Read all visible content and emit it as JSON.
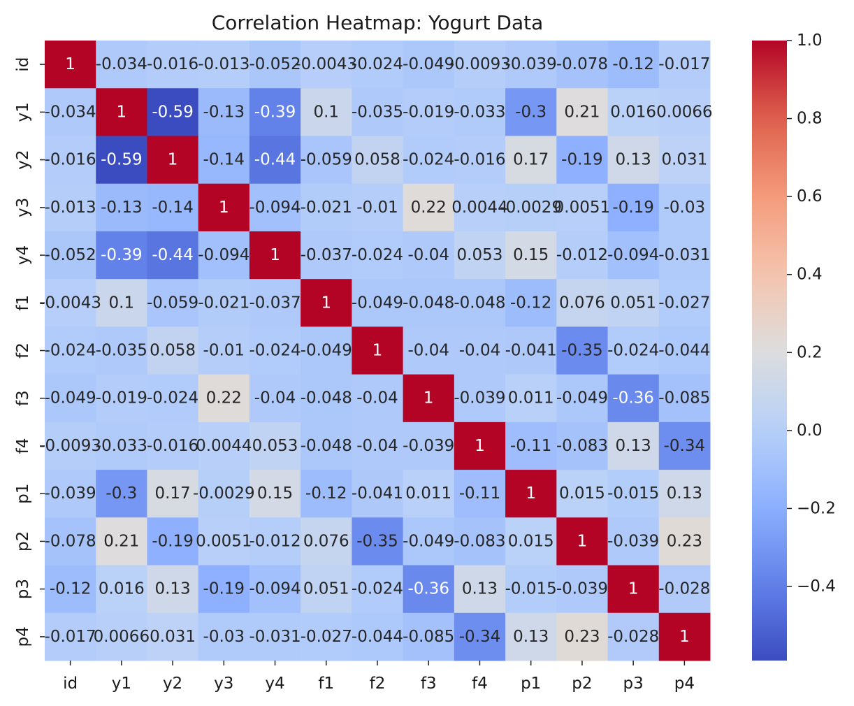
{
  "chart_data": {
    "type": "heatmap",
    "title": "Correlation Heatmap: Yogurt Data",
    "xlabel": "",
    "ylabel": "",
    "labels": [
      "id",
      "y1",
      "y2",
      "y3",
      "y4",
      "f1",
      "f2",
      "f3",
      "f4",
      "p1",
      "p2",
      "p3",
      "p4"
    ],
    "matrix": [
      [
        1,
        -0.034,
        -0.016,
        -0.013,
        -0.052,
        -0.0043,
        -0.024,
        -0.049,
        -0.0093,
        -0.039,
        -0.078,
        -0.12,
        -0.017
      ],
      [
        -0.034,
        1,
        -0.59,
        -0.13,
        -0.39,
        0.1,
        -0.035,
        -0.019,
        -0.033,
        -0.3,
        0.21,
        0.016,
        0.0066
      ],
      [
        -0.016,
        -0.59,
        1,
        -0.14,
        -0.44,
        -0.059,
        0.058,
        -0.024,
        -0.016,
        0.17,
        -0.19,
        0.13,
        0.031
      ],
      [
        -0.013,
        -0.13,
        -0.14,
        1,
        -0.094,
        -0.021,
        -0.01,
        0.22,
        0.0044,
        -0.0029,
        0.0051,
        -0.19,
        -0.03
      ],
      [
        -0.052,
        -0.39,
        -0.44,
        -0.094,
        1,
        -0.037,
        -0.024,
        -0.04,
        0.053,
        0.15,
        -0.012,
        -0.094,
        -0.031
      ],
      [
        -0.0043,
        0.1,
        -0.059,
        -0.021,
        -0.037,
        1,
        -0.049,
        -0.048,
        -0.048,
        -0.12,
        0.076,
        0.051,
        -0.027
      ],
      [
        -0.024,
        -0.035,
        0.058,
        -0.01,
        -0.024,
        -0.049,
        1,
        -0.04,
        -0.04,
        -0.041,
        -0.35,
        -0.024,
        -0.044
      ],
      [
        -0.049,
        -0.019,
        -0.024,
        0.22,
        -0.04,
        -0.048,
        -0.04,
        1,
        -0.039,
        0.011,
        -0.049,
        -0.36,
        -0.085
      ],
      [
        -0.0093,
        -0.033,
        -0.016,
        0.0044,
        0.053,
        -0.048,
        -0.04,
        -0.039,
        1,
        -0.11,
        -0.083,
        0.13,
        -0.34
      ],
      [
        -0.039,
        -0.3,
        0.17,
        -0.0029,
        0.15,
        -0.12,
        -0.041,
        0.011,
        -0.11,
        1,
        0.015,
        -0.015,
        0.13
      ],
      [
        -0.078,
        0.21,
        -0.19,
        0.0051,
        -0.012,
        0.076,
        -0.35,
        -0.049,
        -0.083,
        0.015,
        1,
        -0.039,
        0.23
      ],
      [
        -0.12,
        0.016,
        0.13,
        -0.19,
        -0.094,
        0.051,
        -0.024,
        -0.36,
        0.13,
        -0.015,
        -0.039,
        1,
        -0.028
      ],
      [
        -0.017,
        0.0066,
        0.031,
        -0.03,
        -0.031,
        -0.027,
        -0.044,
        -0.085,
        -0.34,
        0.13,
        0.23,
        -0.028,
        1
      ]
    ],
    "colormap": "coolwarm",
    "vmin": -0.59,
    "vmax": 1.0,
    "colorbar_ticks": [
      1.0,
      0.8,
      0.6,
      0.4,
      0.2,
      0.0,
      -0.2,
      -0.4
    ],
    "colorbar_tick_labels": [
      "1.0",
      "0.8",
      "0.6",
      "0.4",
      "0.2",
      "0.0",
      "−0.2",
      "−0.4"
    ],
    "annotations": true,
    "grid": false,
    "legend": "colorbar-right"
  }
}
